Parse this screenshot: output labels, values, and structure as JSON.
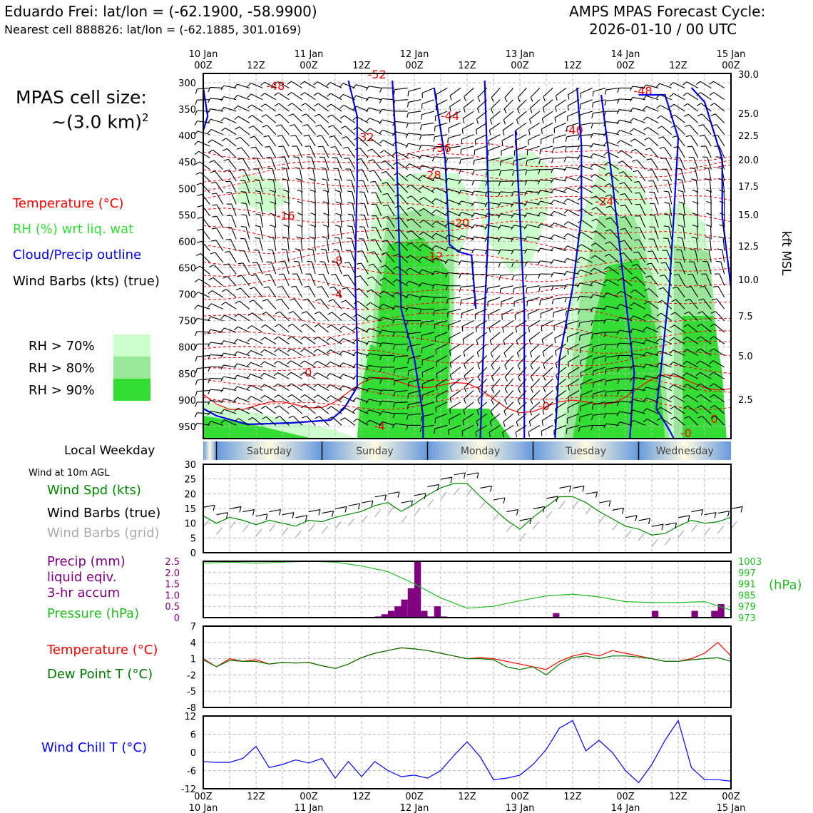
{
  "header": {
    "station_title": "Eduardo Frei: lat/lon = (-62.1900, -58.9900)",
    "nearest_cell": "Nearest cell 888826: lat/lon = (-62.1885, 301.0169)",
    "forecast_title": "AMPS MPAS Forecast Cycle:",
    "forecast_cycle": "2026-01-10 / 00 UTC",
    "cell_size_label": "MPAS cell size:",
    "cell_size_value": "~(3.0 km)",
    "cell_size_exp": "2"
  },
  "legend_top": {
    "temperature": "Temperature (°C)",
    "rh": "RH (%) wrt liq. wat",
    "cloud": "Cloud/Precip outline",
    "barbs": "Wind Barbs (kts) (true)",
    "rh70": "RH > 70%",
    "rh80": "RH > 80%",
    "rh90": "RH > 90%"
  },
  "colors": {
    "temp": "#ff0000",
    "rh_label": "#33dd33",
    "cloud": "#0000ee",
    "rh70": "#ccffcc",
    "rh80": "#99e899",
    "rh90": "#33dd33",
    "wind_spd": "#008800",
    "precip": "#800080",
    "pressure": "#22bb22",
    "dewpoint": "#007700",
    "windchill": "#0000ff",
    "grid_barb": "#aaaaaa"
  },
  "panel_labels": {
    "local_weekday": "Local Weekday",
    "wind_10m": "Wind at 10m AGL",
    "wind_spd": "Wind Spd (kts)",
    "wind_barbs": "Wind Barbs (true)",
    "wind_barbs_grid": "Wind Barbs (grid)",
    "precip1": "Precip (mm)",
    "precip2": "liquid eqiv.",
    "precip3": "3-hr accum",
    "pressure": "Pressure (hPa)",
    "temp": "Temperature (°C)",
    "dewpoint": "Dew Point T (°C)",
    "windchill": "Wind Chill T (°C)"
  },
  "chart_data": [
    {
      "type": "time-height cross section",
      "name": "profile",
      "time_labels_top": [
        [
          "10 Jan",
          "00Z"
        ],
        [
          "",
          "12Z"
        ],
        [
          "11 Jan",
          "00Z"
        ],
        [
          "",
          "12Z"
        ],
        [
          "12 Jan",
          "00Z"
        ],
        [
          "",
          "12Z"
        ],
        [
          "13 Jan",
          "00Z"
        ],
        [
          "",
          "12Z"
        ],
        [
          "14 Jan",
          "00Z"
        ],
        [
          "",
          "12Z"
        ],
        [
          "15 Jan",
          "00Z"
        ]
      ],
      "pressure_ticks": [
        "300",
        "350",
        "400",
        "450",
        "500",
        "550",
        "600",
        "650",
        "700",
        "750",
        "800",
        "850",
        "900",
        "950"
      ],
      "kft_ticks": [
        "30.0",
        "25.0",
        "22.5",
        "20.0",
        "17.5",
        "15.0",
        "12.5",
        "10.0",
        "7.5",
        "5.0",
        "2.5"
      ],
      "right_axis_label": "kft MSL",
      "temperature_labels": [
        "-48",
        "-52",
        "-32",
        "-44",
        "-36",
        "-28",
        "-40",
        "-48",
        "-24",
        "-16",
        "-20",
        "-12",
        "-8",
        "-4",
        "0",
        "0",
        "-0",
        "-0",
        "-4"
      ]
    },
    {
      "type": "band",
      "name": "weekday",
      "labels": [
        "Saturday",
        "Sunday",
        "Monday",
        "Tuesday",
        "Wednesday"
      ]
    },
    {
      "type": "line",
      "name": "wind_speed",
      "ylim": [
        0,
        30
      ],
      "yticks": [
        "0",
        "5",
        "10",
        "15",
        "20",
        "25",
        "30"
      ],
      "x_hours": [
        0,
        6,
        12,
        18,
        24,
        30,
        36,
        42,
        48,
        54,
        60,
        66,
        72,
        78,
        84,
        90,
        96,
        102,
        108,
        114,
        120,
        126,
        132,
        138,
        144,
        150,
        156,
        162,
        168,
        174,
        180,
        186,
        192,
        198,
        204,
        210,
        216,
        222,
        228,
        234,
        240
      ],
      "values": [
        12.5,
        10.0,
        12.0,
        11.0,
        9.5,
        11.0,
        10.0,
        9.0,
        11.0,
        10.5,
        12.0,
        13.0,
        14.0,
        16.0,
        17.0,
        14.0,
        16.5,
        19.5,
        22.0,
        23.5,
        23.5,
        19.0,
        15.0,
        11.0,
        8.0,
        12.0,
        15.5,
        19.0,
        19.0,
        17.0,
        14.0,
        11.5,
        9.0,
        8.0,
        6.0,
        6.5,
        9.0,
        11.0,
        10.0,
        10.5,
        12.0
      ]
    },
    {
      "type": "bar+line",
      "name": "precip_pressure",
      "precip_ylim": [
        0,
        2.5
      ],
      "precip_yticks": [
        "0",
        "0.5",
        "1.0",
        "1.5",
        "2.0",
        "2.5"
      ],
      "pressure_yticks": [
        "973",
        "979",
        "985",
        "991",
        "997",
        "1003"
      ],
      "pressure_axis_label": "(hPa)",
      "precip_hours": [
        72,
        75,
        78,
        81,
        84,
        87,
        90,
        93,
        96,
        99,
        102,
        105,
        108,
        111,
        114,
        117,
        120,
        123,
        126,
        129,
        132,
        135,
        138,
        141
      ],
      "precip": [
        0,
        0,
        0,
        0.05,
        0.15,
        0.3,
        0.5,
        0.8,
        1.3,
        2.5,
        0.3,
        0.05,
        0.5,
        0.05,
        0,
        0,
        0,
        0,
        0,
        0,
        0,
        0,
        0,
        0
      ],
      "precip_hours_2": [
        111,
        114,
        117,
        120,
        159,
        162,
        165,
        168,
        171,
        174,
        177,
        180,
        183,
        186,
        189,
        192,
        195,
        198,
        201,
        204,
        207,
        210,
        213,
        216,
        219,
        222,
        225,
        228,
        231,
        234,
        237
      ],
      "precip_2": [
        0,
        0,
        0,
        0,
        0,
        0.2,
        0,
        0,
        0,
        0,
        0,
        0,
        0,
        0,
        0,
        0,
        0,
        0,
        0,
        0,
        0.3,
        0,
        0,
        0,
        0,
        0,
        0.3,
        0,
        0,
        0.3,
        0.6
      ],
      "pressure_hours": [
        0,
        12,
        24,
        36,
        48,
        60,
        72,
        84,
        96,
        108,
        120,
        132,
        144,
        156,
        168,
        180,
        192,
        204,
        216,
        228,
        240
      ],
      "pressure": [
        1002.0,
        1002.5,
        1002.0,
        1002.5,
        1003.0,
        1002.5,
        1000.5,
        997.5,
        991.0,
        983.5,
        978.0,
        979.0,
        982.0,
        984.5,
        985.5,
        984.0,
        981.5,
        981.0,
        981.0,
        981.5,
        977.0
      ]
    },
    {
      "type": "line",
      "name": "temp_dewpoint",
      "ylim": [
        -8,
        7
      ],
      "yticks": [
        "-8",
        "-5",
        "-2",
        "1",
        "4",
        "7"
      ],
      "x_hours": [
        0,
        6,
        12,
        18,
        24,
        30,
        36,
        42,
        48,
        54,
        60,
        66,
        72,
        78,
        84,
        90,
        96,
        102,
        108,
        114,
        120,
        126,
        132,
        138,
        144,
        150,
        156,
        162,
        168,
        174,
        180,
        186,
        192,
        198,
        204,
        210,
        216,
        222,
        228,
        234,
        240
      ],
      "temperature": [
        1.0,
        -0.5,
        1.0,
        0.5,
        0.8,
        0,
        0.3,
        0.2,
        0.3,
        -0.3,
        -0.8,
        0,
        1.2,
        2.0,
        2.5,
        3.0,
        2.8,
        2.5,
        2.0,
        1.5,
        1.0,
        1.2,
        1.0,
        0.5,
        0,
        -0.5,
        -1.0,
        0.5,
        1.5,
        2.0,
        1.5,
        2.5,
        2.0,
        1.5,
        1.0,
        0.5,
        0.5,
        1.0,
        2.0,
        4.0,
        1.5
      ],
      "dewpoint": [
        0.8,
        -0.5,
        0.7,
        0.5,
        0.5,
        0,
        0.3,
        0.2,
        0.3,
        -0.3,
        -0.8,
        0,
        1.2,
        2.0,
        2.5,
        3.0,
        2.8,
        2.5,
        2.0,
        1.5,
        1.0,
        1.0,
        0.8,
        -0.5,
        -1.0,
        -0.5,
        -2.0,
        0,
        1.2,
        1.5,
        1.0,
        1.5,
        1.5,
        1.3,
        1.0,
        0.5,
        0.5,
        0.8,
        1.0,
        1.2,
        0.5
      ]
    },
    {
      "type": "line",
      "name": "wind_chill",
      "ylim": [
        -12,
        12
      ],
      "yticks": [
        "-12",
        "-6",
        "0",
        "6",
        "12"
      ],
      "x_hours": [
        0,
        6,
        12,
        18,
        24,
        30,
        36,
        42,
        48,
        54,
        60,
        66,
        72,
        78,
        84,
        90,
        96,
        102,
        108,
        114,
        120,
        126,
        132,
        138,
        144,
        150,
        156,
        162,
        168,
        174,
        180,
        186,
        192,
        198,
        204,
        210,
        216,
        222,
        228,
        234,
        240
      ],
      "values": [
        -3.0,
        -3.3,
        -3.3,
        -2.0,
        2.0,
        -5.0,
        -4.0,
        -2.5,
        -3.5,
        -2.0,
        -8.5,
        -3.0,
        -8.0,
        -3.0,
        -6.0,
        -8.0,
        -7.5,
        -8.5,
        -6.0,
        -1.0,
        3.5,
        -1.5,
        -9.0,
        -8.5,
        -7.5,
        -4.0,
        1.0,
        8.0,
        10.5,
        0.5,
        4.0,
        0.0,
        -6.0,
        -10.0,
        -4.0,
        4.0,
        10.5,
        -5.0,
        -9.0,
        -9.0,
        -9.5
      ],
      "xlabels": [
        [
          "00Z",
          "10 Jan"
        ],
        [
          "12Z",
          ""
        ],
        [
          "00Z",
          "11 Jan"
        ],
        [
          "12Z",
          ""
        ],
        [
          "00Z",
          "12 Jan"
        ],
        [
          "12Z",
          ""
        ],
        [
          "00Z",
          "13 Jan"
        ],
        [
          "12Z",
          ""
        ],
        [
          "00Z",
          "14 Jan"
        ],
        [
          "12Z",
          ""
        ],
        [
          "00Z",
          "15 Jan"
        ]
      ]
    }
  ]
}
